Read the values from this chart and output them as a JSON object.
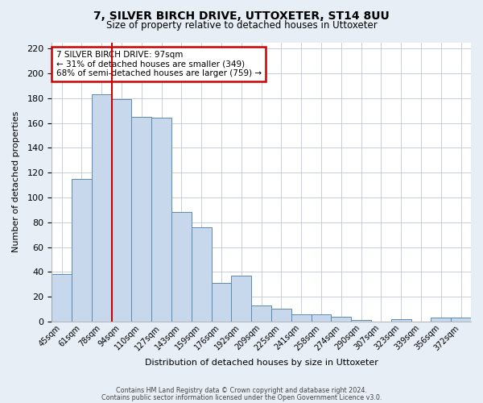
{
  "title": "7, SILVER BIRCH DRIVE, UTTOXETER, ST14 8UU",
  "subtitle": "Size of property relative to detached houses in Uttoxeter",
  "xlabel": "Distribution of detached houses by size in Uttoxeter",
  "ylabel": "Number of detached properties",
  "footer_line1": "Contains HM Land Registry data © Crown copyright and database right 2024.",
  "footer_line2": "Contains public sector information licensed under the Open Government Licence v3.0.",
  "bar_labels": [
    "45sqm",
    "61sqm",
    "78sqm",
    "94sqm",
    "110sqm",
    "127sqm",
    "143sqm",
    "159sqm",
    "176sqm",
    "192sqm",
    "209sqm",
    "225sqm",
    "241sqm",
    "258sqm",
    "274sqm",
    "290sqm",
    "307sqm",
    "323sqm",
    "339sqm",
    "356sqm",
    "372sqm"
  ],
  "bar_values": [
    38,
    115,
    183,
    179,
    165,
    164,
    88,
    76,
    31,
    37,
    13,
    10,
    6,
    6,
    4,
    1,
    0,
    2,
    0,
    3,
    3
  ],
  "bar_color": "#c8d8ec",
  "bar_edge_color": "#5a8ab0",
  "ylim": [
    0,
    225
  ],
  "yticks": [
    0,
    20,
    40,
    60,
    80,
    100,
    120,
    140,
    160,
    180,
    200,
    220
  ],
  "red_line_bar_index": 3,
  "annotation_title": "7 SILVER BIRCH DRIVE: 97sqm",
  "annotation_line1": "← 31% of detached houses are smaller (349)",
  "annotation_line2": "68% of semi-detached houses are larger (759) →",
  "annotation_box_color": "#ffffff",
  "annotation_box_edge_color": "#cc0000",
  "red_line_color": "#cc0000",
  "background_color": "#e8eef5",
  "plot_background_color": "#ffffff",
  "grid_color": "#c0c8d4"
}
